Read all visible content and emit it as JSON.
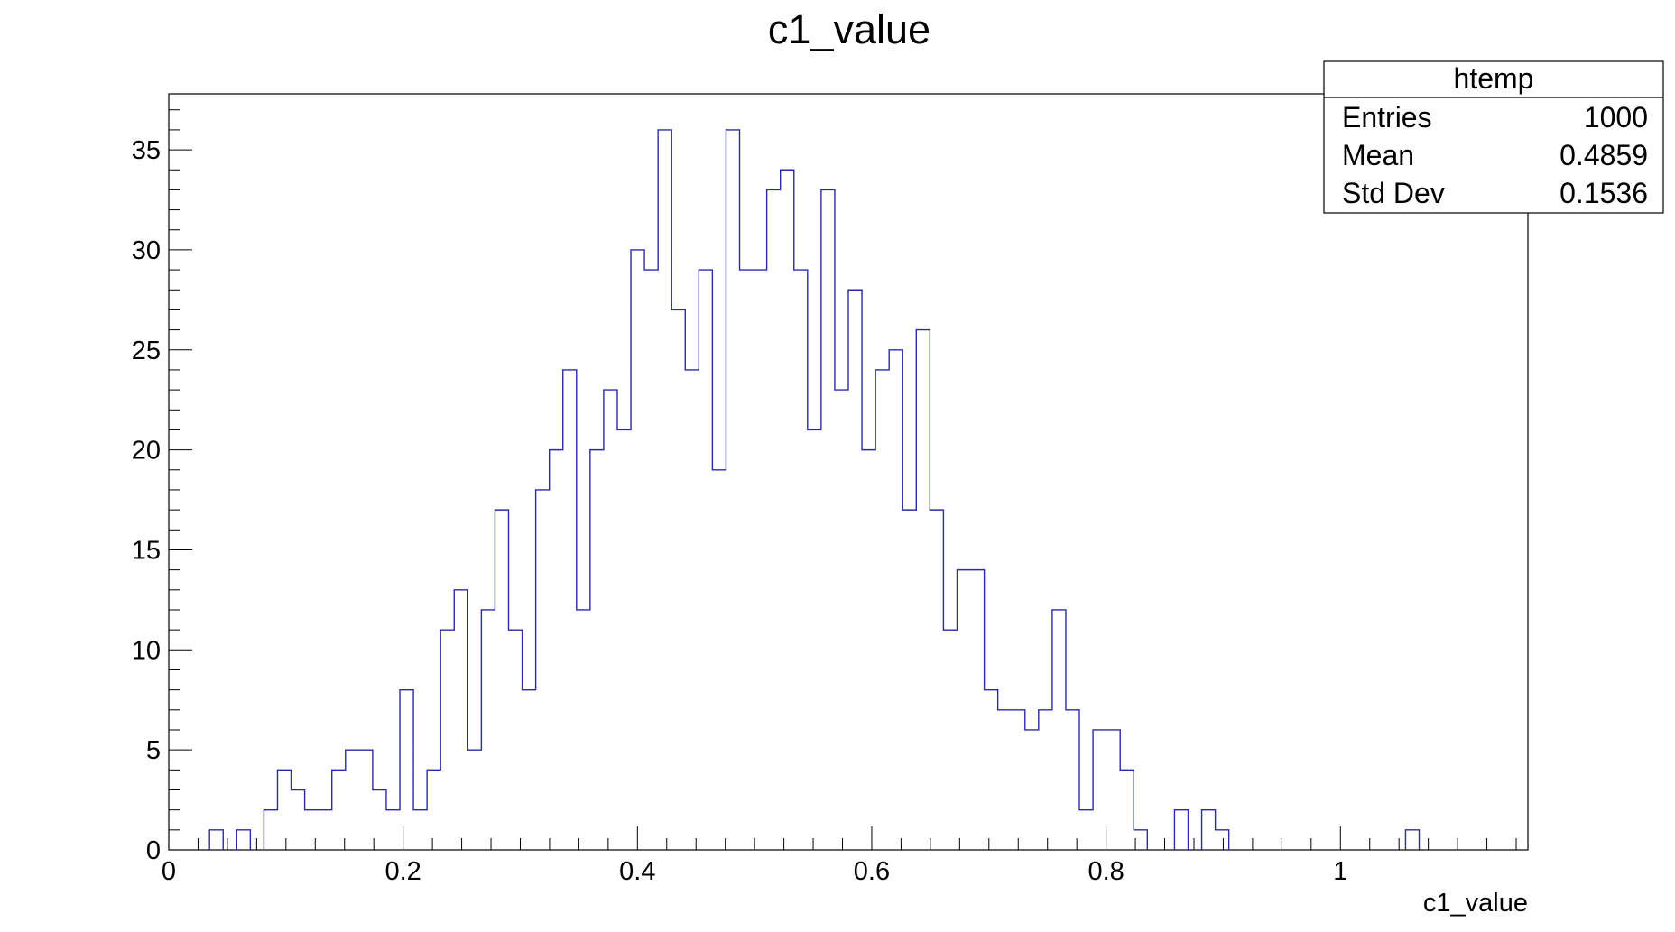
{
  "chart_data": {
    "type": "histogram",
    "title": "c1_value",
    "xlabel": "c1_value",
    "ylabel": "",
    "xlim": [
      0,
      1.16
    ],
    "ylim": [
      0,
      37.8
    ],
    "bin_width": 0.0116,
    "bin_start": 0,
    "x_ticks": [
      {
        "value": 0,
        "label": "0"
      },
      {
        "value": 0.2,
        "label": "0.2"
      },
      {
        "value": 0.4,
        "label": "0.4"
      },
      {
        "value": 0.6,
        "label": "0.6"
      },
      {
        "value": 0.8,
        "label": "0.8"
      },
      {
        "value": 1,
        "label": "1"
      }
    ],
    "y_ticks": [
      {
        "value": 0,
        "label": "0"
      },
      {
        "value": 5,
        "label": "5"
      },
      {
        "value": 10,
        "label": "10"
      },
      {
        "value": 15,
        "label": "15"
      },
      {
        "value": 20,
        "label": "20"
      },
      {
        "value": 25,
        "label": "25"
      },
      {
        "value": 30,
        "label": "30"
      },
      {
        "value": 35,
        "label": "35"
      }
    ],
    "line_color": "#2a2aa8",
    "values": [
      0,
      0,
      0,
      1,
      0,
      1,
      0,
      2,
      4,
      3,
      2,
      2,
      4,
      5,
      5,
      3,
      2,
      8,
      2,
      4,
      11,
      13,
      5,
      12,
      17,
      11,
      8,
      18,
      20,
      24,
      12,
      20,
      23,
      21,
      30,
      29,
      36,
      27,
      24,
      29,
      19,
      36,
      29,
      29,
      33,
      34,
      29,
      21,
      33,
      23,
      28,
      20,
      24,
      25,
      17,
      26,
      17,
      11,
      14,
      14,
      8,
      7,
      7,
      6,
      7,
      12,
      7,
      2,
      6,
      6,
      4,
      1,
      0,
      0,
      2,
      0,
      2,
      1,
      0,
      0,
      0,
      0,
      0,
      0,
      0,
      0,
      0,
      0,
      0,
      0,
      0,
      1,
      0,
      0,
      0,
      0,
      0,
      0,
      0,
      0
    ],
    "stats_box": {
      "title": "htemp",
      "rows": [
        {
          "label": "Entries",
          "value": "1000"
        },
        {
          "label": "Mean",
          "value": "0.4859"
        },
        {
          "label": "Std Dev",
          "value": "0.1536"
        }
      ]
    }
  }
}
